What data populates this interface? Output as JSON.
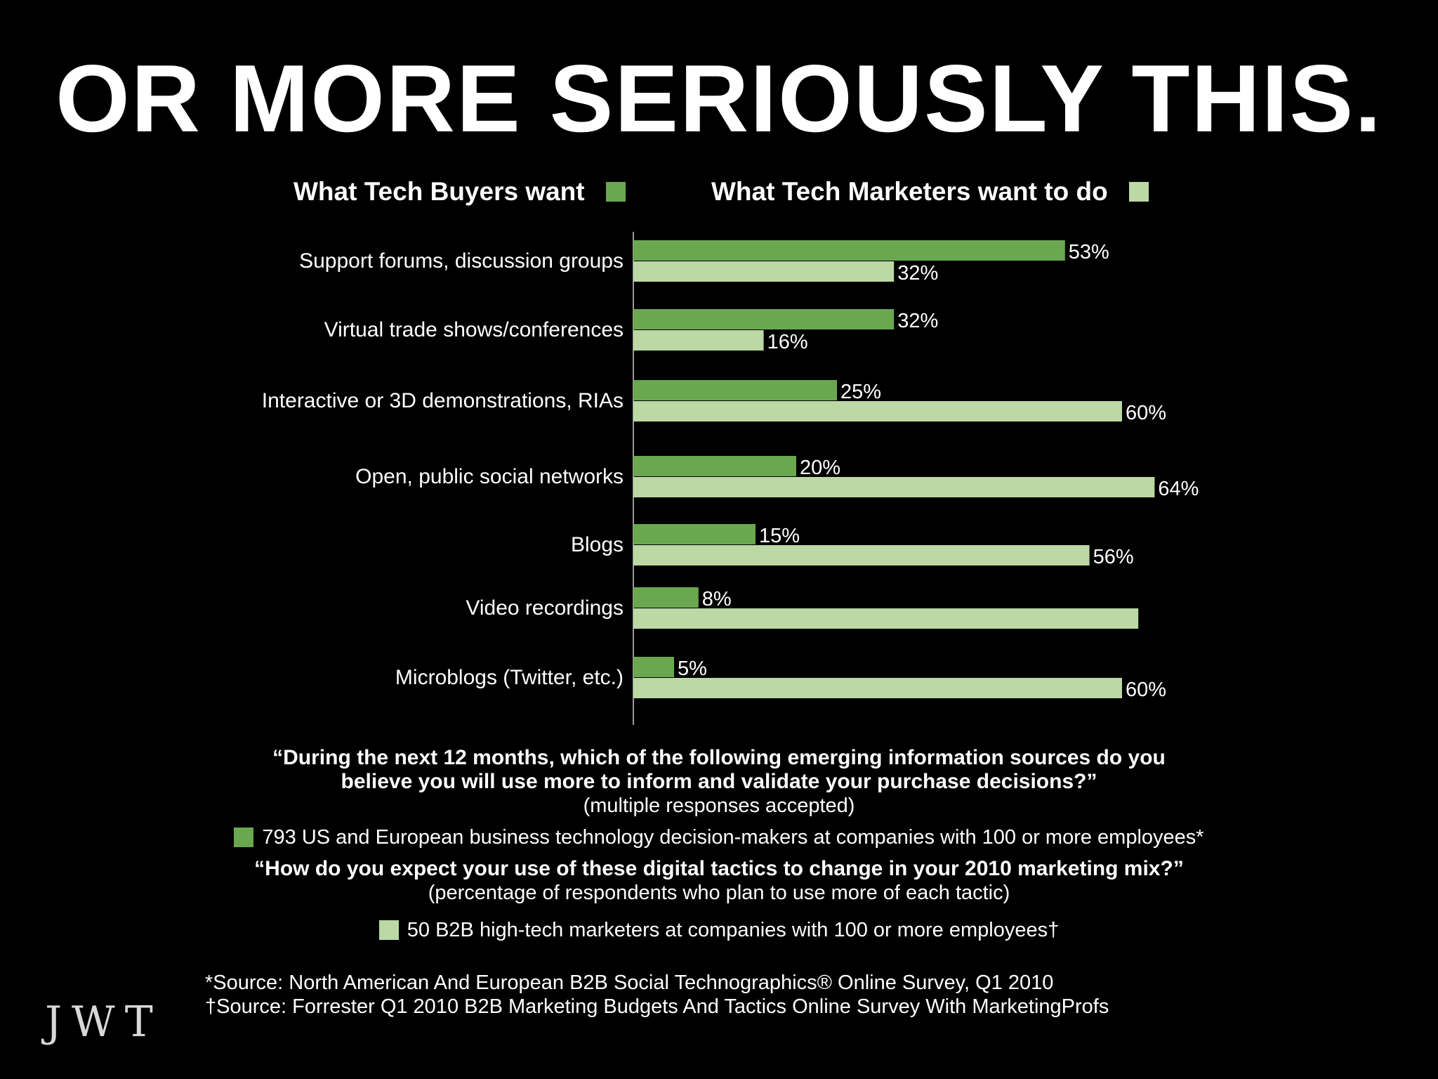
{
  "slide": {
    "title": "OR MORE SERIOUSLY THIS.",
    "logo": "JWT"
  },
  "colors": {
    "background": "#000000",
    "buyers": "#6aa84f",
    "marketers": "#bcd8a5",
    "text": "#ffffff"
  },
  "legend": {
    "buyers": "What Tech Buyers want",
    "marketers": "What Tech Marketers want to do"
  },
  "chart_data": {
    "type": "bar",
    "orientation": "horizontal",
    "categories": [
      "Support forums, discussion groups",
      "Virtual trade shows/conferences",
      "Interactive or 3D demonstrations, RIAs",
      "Open, public social networks",
      "Blogs",
      "Video recordings",
      "Microblogs (Twitter, etc.)"
    ],
    "series": [
      {
        "name": "What Tech Buyers want",
        "values": [
          53,
          32,
          25,
          20,
          15,
          8,
          5
        ],
        "labels": [
          "53%",
          "32%",
          "25%",
          "20%",
          "15%",
          "8%",
          "5%"
        ]
      },
      {
        "name": "What Tech Marketers want to do",
        "values": [
          32,
          16,
          60,
          64,
          56,
          62,
          60
        ],
        "labels": [
          "32%",
          "16%",
          "60%",
          "64%",
          "56%",
          "",
          "60%"
        ]
      }
    ],
    "xlim": [
      0,
      100
    ],
    "grid": false,
    "legend_position": "top"
  },
  "notes": {
    "question1": [
      "“During the next 12 months, which of the following emerging information sources do you",
      "believe you will use more to inform and validate your purchase decisions?”"
    ],
    "question1_note": "(multiple responses accepted)",
    "sample1": "793 US and European business technology decision-makers at companies with 100 or more employees*",
    "question2": "“How do you expect your use of these digital tactics to change in your 2010 marketing mix?”",
    "question2_note": "(percentage of respondents who plan to use more of each tactic)",
    "sample2": "50 B2B high-tech marketers at companies with 100 or more employees†"
  },
  "sources": [
    "*Source: North American And European B2B Social Technographics® Online Survey, Q1 2010",
    "†Source: Forrester Q1 2010 B2B Marketing Budgets And Tactics Online Survey With MarketingProfs"
  ]
}
